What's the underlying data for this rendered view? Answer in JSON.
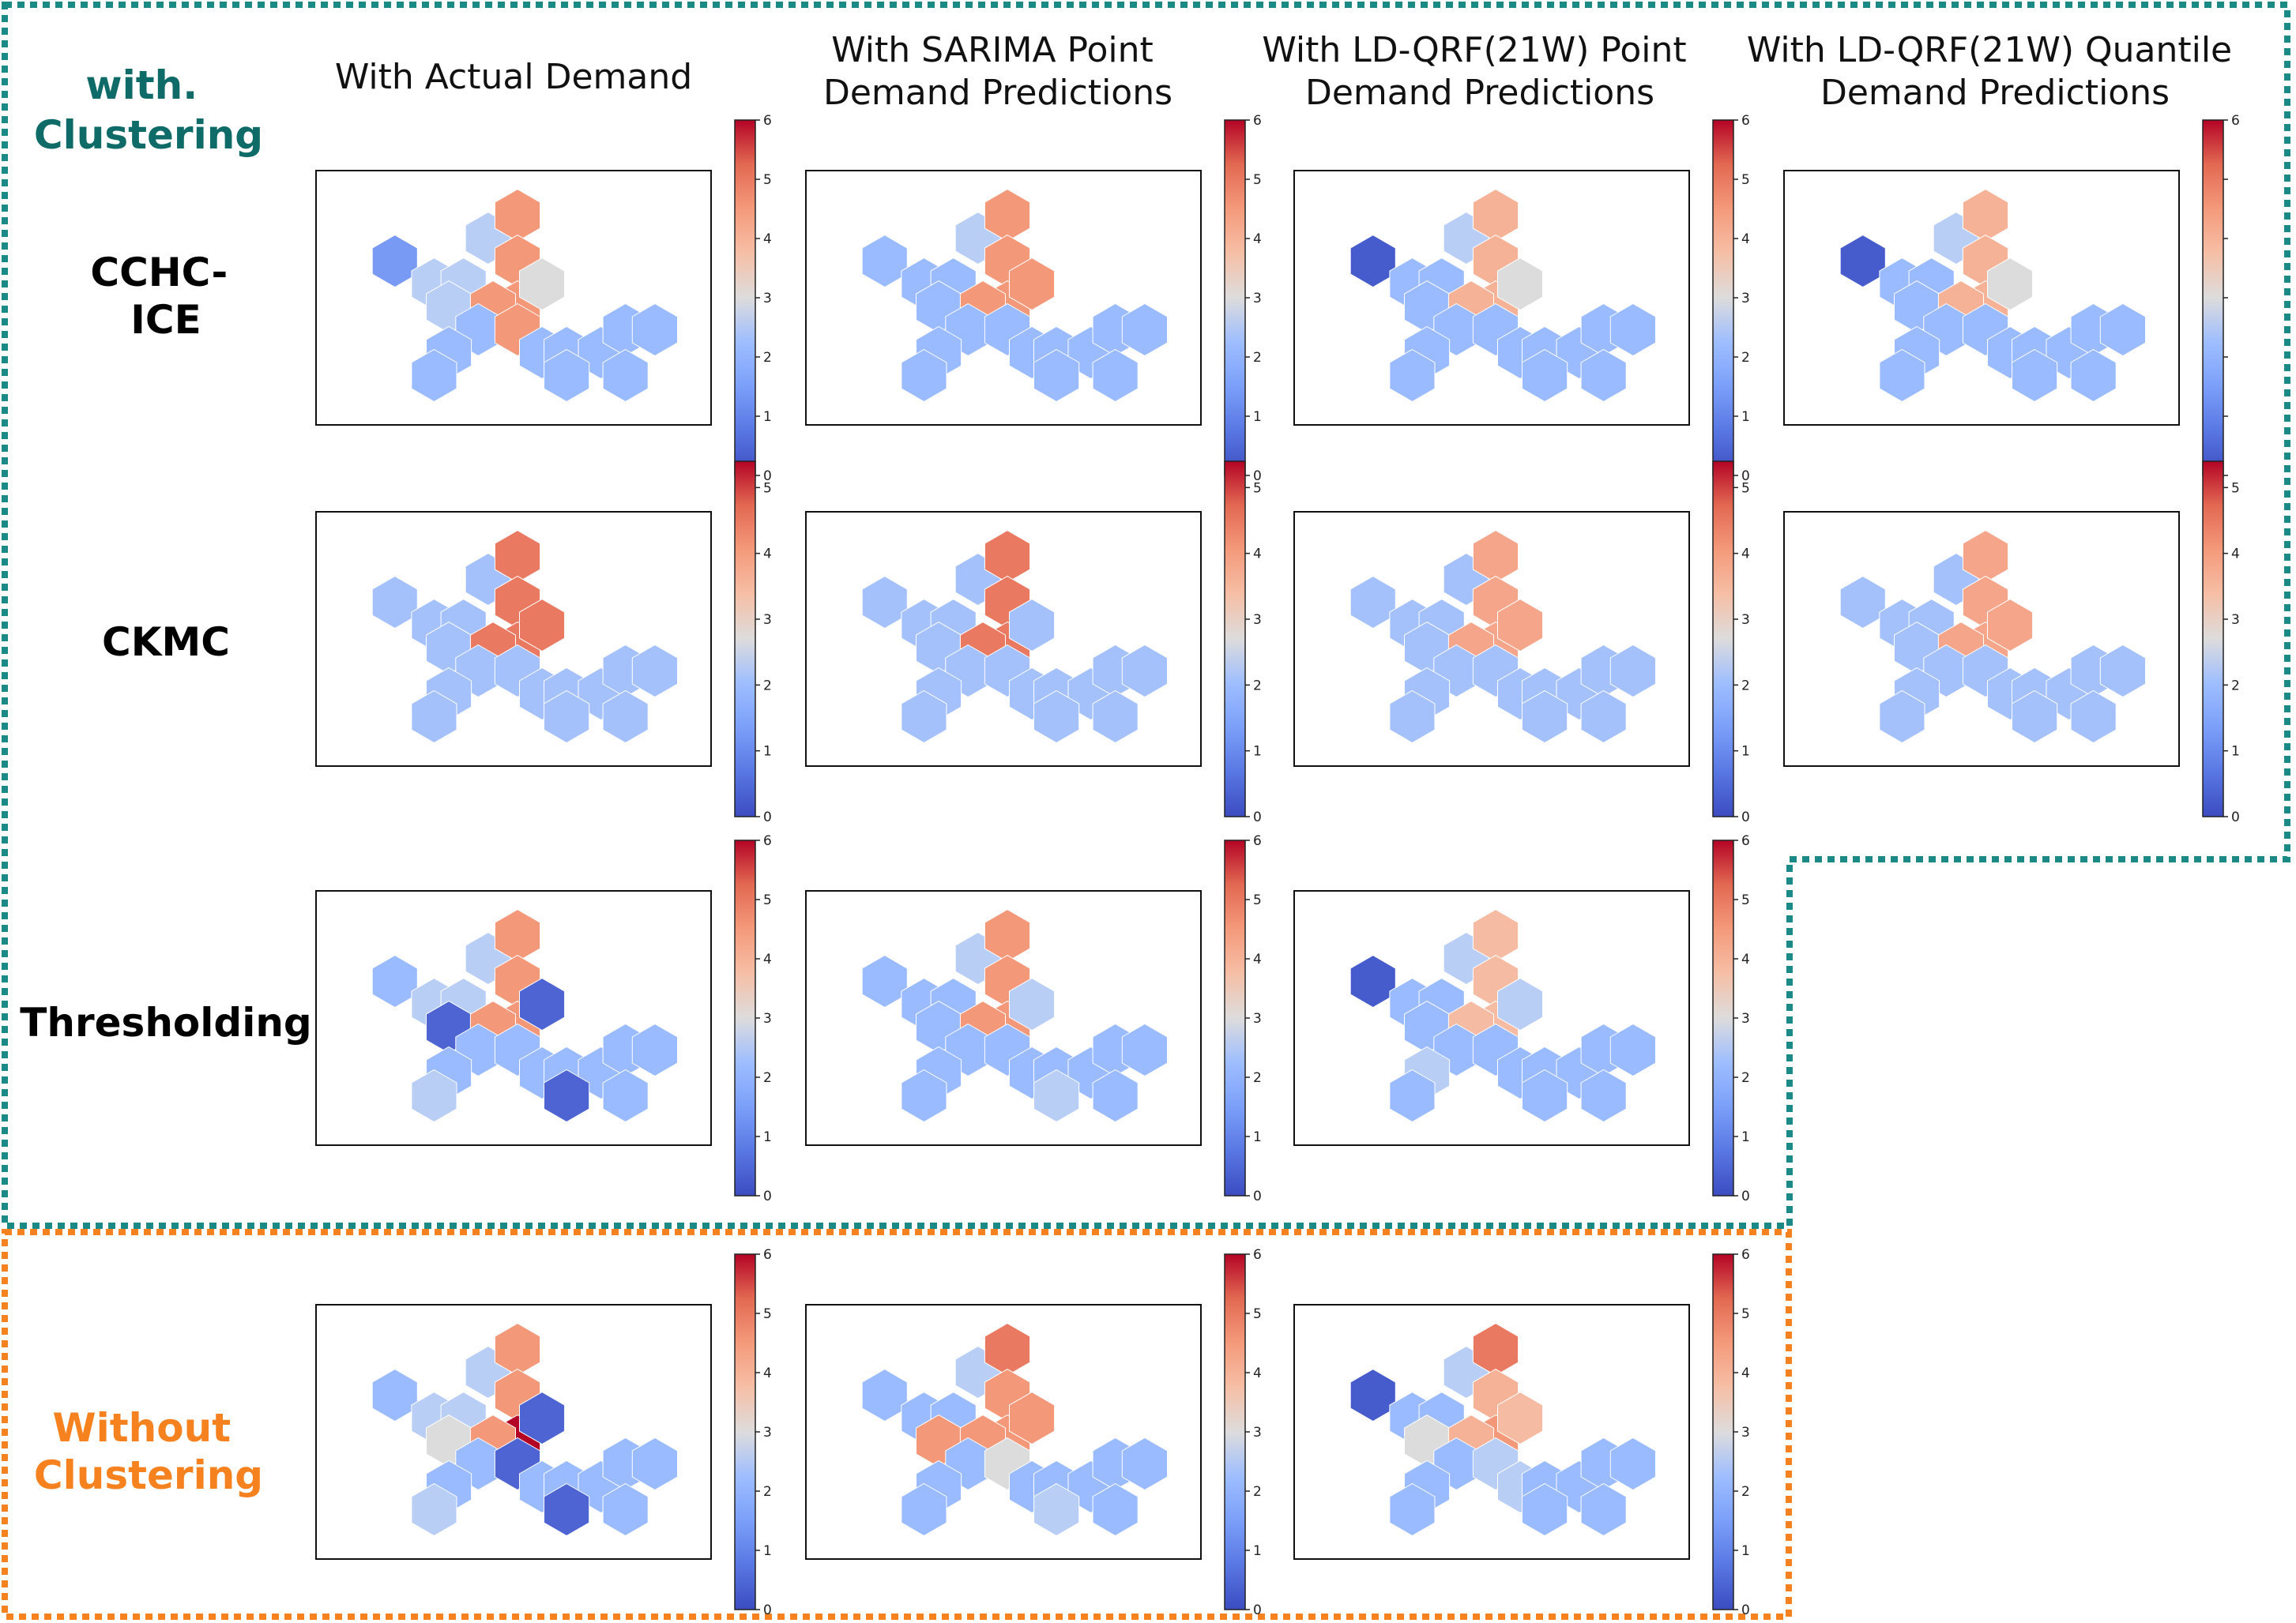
{
  "group_labels": {
    "with_clustering": [
      "with.",
      "Clustering"
    ],
    "without_clustering": [
      "Without",
      "Clustering"
    ],
    "with_color": "#0e6b67",
    "without_color": "#f5821f"
  },
  "columns": [
    [
      "With Actual Demand"
    ],
    [
      "With SARIMA Point",
      "Demand Predictions"
    ],
    [
      "With LD-QRF(21W) Point",
      "Demand Predictions"
    ],
    [
      "With LD-QRF(21W) Quantile",
      "Demand Predictions"
    ]
  ],
  "rows": [
    [
      "CCHC-",
      "ICE"
    ],
    [
      "CKMC"
    ],
    [
      "Thresholding"
    ],
    []
  ],
  "chart_data": {
    "type": "heatmap",
    "description": "Hexagonal demand maps per clustering method (rows) and demand source (columns); colour scale coolwarm",
    "colormap": [
      "#3b4cc0",
      "#6788ee",
      "#9abbff",
      "#c9d7f0",
      "#dddcdc",
      "#f6bfa6",
      "#f4987a",
      "#e36a53",
      "#b40426"
    ],
    "hex_cells": 21,
    "panels": [
      {
        "row": 0,
        "col": 0,
        "vmax": 6,
        "ticks": [
          0,
          1,
          2,
          3,
          4,
          5,
          6
        ],
        "values": [
          1,
          2,
          4.5,
          4.5,
          4.5,
          2,
          2,
          3,
          2,
          4.5,
          1.5,
          4.5,
          1.5,
          1.5,
          1.5,
          1.5,
          1.5,
          1.5,
          1.5,
          1.5,
          1.5
        ]
      },
      {
        "row": 0,
        "col": 1,
        "vmax": 6,
        "ticks": [
          0,
          1,
          2,
          3,
          4,
          5,
          6
        ],
        "values": [
          1.5,
          2,
          4.5,
          4.5,
          4.5,
          1.5,
          1.5,
          4.5,
          1.5,
          4.5,
          1.5,
          1.5,
          1.5,
          1.5,
          1.5,
          1.5,
          1.5,
          1.5,
          1.5,
          1.5,
          1.5
        ]
      },
      {
        "row": 0,
        "col": 2,
        "vmax": 6,
        "ticks": [
          0,
          1,
          2,
          3,
          4,
          5,
          6
        ],
        "values": [
          0.2,
          2,
          4,
          4,
          4,
          1.5,
          1.5,
          3,
          1.5,
          4,
          1.5,
          1.5,
          1.5,
          1.5,
          1.5,
          1.5,
          1.5,
          1.5,
          1.5,
          1.5,
          1.5
        ]
      },
      {
        "row": 0,
        "col": 3,
        "vmax": 6,
        "ticks": [
          0,
          1,
          2,
          3,
          4,
          5,
          6
        ],
        "labels": [
          "",
          "",
          "",
          "",
          "",
          "",
          "6"
        ],
        "values": [
          0.2,
          2,
          4,
          4,
          4,
          1.5,
          1.5,
          3,
          1.5,
          4,
          1.5,
          1.5,
          1.5,
          1.5,
          1.5,
          1.5,
          1.5,
          1.5,
          1.5,
          1.5,
          1.5
        ]
      },
      {
        "row": 1,
        "col": 0,
        "vmax": 5.4,
        "ticks": [
          0,
          1,
          2,
          3,
          4,
          5
        ],
        "values": [
          1.5,
          1.5,
          4.5,
          4.5,
          4.5,
          1.5,
          1.5,
          4.5,
          1.5,
          4.5,
          1.5,
          1.5,
          1.5,
          1.5,
          1.5,
          1.5,
          1.5,
          1.5,
          1.5,
          1.5,
          1.5
        ]
      },
      {
        "row": 1,
        "col": 1,
        "vmax": 5.4,
        "ticks": [
          0,
          1,
          2,
          3,
          4,
          5
        ],
        "values": [
          1.5,
          1.5,
          4.5,
          4.5,
          4.5,
          1.5,
          1.5,
          1.5,
          1.5,
          4.5,
          1.5,
          1.5,
          1.5,
          1.5,
          1.5,
          1.5,
          1.5,
          1.5,
          1.5,
          1.5,
          1.5
        ]
      },
      {
        "row": 1,
        "col": 2,
        "vmax": 5.4,
        "ticks": [
          0,
          1,
          2,
          3,
          4,
          5
        ],
        "values": [
          1.5,
          1.5,
          3.8,
          3.8,
          3.8,
          1.5,
          1.5,
          3.8,
          1.5,
          3.8,
          1.5,
          1.5,
          1.5,
          1.5,
          1.5,
          1.5,
          1.5,
          1.5,
          1.5,
          1.5,
          1.5
        ]
      },
      {
        "row": 1,
        "col": 3,
        "vmax": 5.4,
        "ticks": [
          0,
          1,
          2,
          3,
          4,
          5
        ],
        "values": [
          1.5,
          1.5,
          3.8,
          3.8,
          3.8,
          1.5,
          1.5,
          3.8,
          1.5,
          3.8,
          1.5,
          1.5,
          1.5,
          1.5,
          1.5,
          1.5,
          1.5,
          1.5,
          1.5,
          1.5,
          1.5
        ]
      },
      {
        "row": 2,
        "col": 0,
        "vmax": 6,
        "ticks": [
          0,
          1,
          2,
          3,
          4,
          5,
          6
        ],
        "values": [
          1.5,
          2,
          4.5,
          4.5,
          4.5,
          2,
          2,
          0.3,
          0.3,
          4.5,
          1.5,
          1.5,
          1.5,
          1.5,
          1.5,
          1.5,
          1.5,
          1.5,
          1.5,
          0.3,
          2
        ]
      },
      {
        "row": 2,
        "col": 1,
        "vmax": 6,
        "ticks": [
          0,
          1,
          2,
          3,
          4,
          5,
          6
        ],
        "values": [
          1.5,
          2,
          4.5,
          4.5,
          4.5,
          1.5,
          1.5,
          2,
          1.5,
          4.5,
          1.5,
          1.5,
          1.5,
          1.5,
          1.5,
          1.5,
          1.5,
          1.5,
          1.5,
          2,
          1.5
        ]
      },
      {
        "row": 2,
        "col": 2,
        "vmax": 6,
        "ticks": [
          0,
          1,
          2,
          3,
          4,
          5,
          6
        ],
        "values": [
          0.2,
          2,
          3.8,
          3.8,
          3.8,
          1.5,
          1.5,
          2,
          1.5,
          3.8,
          1.5,
          1.5,
          2,
          1.5,
          1.5,
          1.5,
          1.5,
          1.5,
          1.5,
          1.5,
          1.5
        ]
      },
      {
        "row": 3,
        "col": 0,
        "vmax": 6,
        "ticks": [
          0,
          1,
          2,
          3,
          4,
          5,
          6
        ],
        "values": [
          1.5,
          2,
          4.5,
          4.5,
          6,
          2,
          2,
          0.3,
          3,
          4.5,
          1.5,
          0.3,
          1.5,
          1.5,
          1.5,
          1.5,
          1.5,
          1.5,
          1.5,
          0.3,
          2
        ]
      },
      {
        "row": 3,
        "col": 1,
        "vmax": 6,
        "ticks": [
          0,
          1,
          2,
          3,
          4,
          5,
          6
        ],
        "values": [
          1.5,
          2,
          5,
          4.5,
          4.5,
          1.5,
          1.5,
          4.5,
          4.5,
          4.5,
          1.5,
          3,
          1.5,
          1.5,
          1.5,
          1.5,
          1.5,
          1.5,
          1.5,
          2,
          1.5
        ]
      },
      {
        "row": 3,
        "col": 2,
        "vmax": 6,
        "ticks": [
          0,
          1,
          2,
          3,
          4,
          5,
          6
        ],
        "values": [
          0.2,
          2,
          5,
          4,
          4.5,
          1.5,
          1.5,
          3.8,
          3,
          4,
          1.5,
          2,
          1.5,
          2,
          1.5,
          1.5,
          1.5,
          1.5,
          1.5,
          1.5,
          1.5
        ]
      }
    ]
  }
}
